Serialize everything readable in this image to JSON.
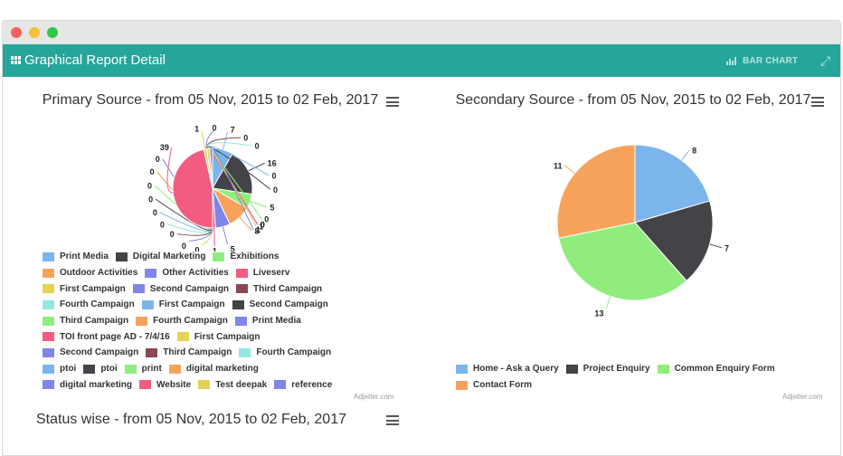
{
  "window": {
    "title": "Graphical Report Detail"
  },
  "header": {
    "bar_chart_label": "BAR CHART"
  },
  "primary_chart": {
    "title": "Primary Source - from 05 Nov, 2015 to 02 Feb, 2017",
    "credit": "Adjetter.com"
  },
  "secondary_chart": {
    "title": "Secondary Source - from 05 Nov, 2015 to 02 Feb, 2017",
    "credit": "Adjetter.com"
  },
  "status_chart": {
    "title": "Status wise - from 05 Nov, 2015 to 02 Feb, 2017"
  },
  "chart_data": [
    {
      "type": "pie",
      "title": "Primary Source - from 05 Nov, 2015 to 02 Feb, 2017",
      "legend_position": "bottom",
      "slices": [
        {
          "label": "Print Media",
          "value": 7,
          "color": "#7cb5ec"
        },
        {
          "label": "Digital Marketing",
          "value": 16,
          "color": "#434348"
        },
        {
          "label": "Exhibitions",
          "value": 5,
          "color": "#90ed7d"
        },
        {
          "label": "Outdoor Activities",
          "value": 8,
          "color": "#f7a35c"
        },
        {
          "label": "Other Activities",
          "value": 5,
          "color": "#8085e9"
        },
        {
          "label": "Liveserv",
          "value": 1,
          "color": "#f15c80"
        },
        {
          "label": "First Campaign",
          "value": 0,
          "color": "#e4d354"
        },
        {
          "label": "Second Campaign",
          "value": 0,
          "color": "#8085e8"
        },
        {
          "label": "Third Campaign",
          "value": 0,
          "color": "#8d4653"
        },
        {
          "label": "Fourth Campaign",
          "value": 0,
          "color": "#91e8e1"
        },
        {
          "label": "First Campaign",
          "value": 0,
          "color": "#7cb5ec"
        },
        {
          "label": "Second Campaign",
          "value": 0,
          "color": "#434348"
        },
        {
          "label": "Third Campaign",
          "value": 0,
          "color": "#90ed7d"
        },
        {
          "label": "Fourth Campaign",
          "value": 0,
          "color": "#f7a35c"
        },
        {
          "label": "Print Media",
          "value": 0,
          "color": "#8085e9"
        },
        {
          "label": "TOI front page AD - 7/4/16",
          "value": 39,
          "color": "#f15c80"
        },
        {
          "label": "First Campaign",
          "value": 1,
          "color": "#e4d354"
        },
        {
          "label": "Second Campaign",
          "value": 0,
          "color": "#8085e8"
        },
        {
          "label": "Third Campaign",
          "value": 0,
          "color": "#8d4653"
        },
        {
          "label": "Fourth Campaign",
          "value": 0,
          "color": "#91e8e1"
        },
        {
          "label": "ptoi",
          "value": 0,
          "color": "#7cb5ec"
        },
        {
          "label": "ptoi",
          "value": 0,
          "color": "#434348"
        },
        {
          "label": "print",
          "value": 0,
          "color": "#90ed7d"
        },
        {
          "label": "digital marketing",
          "value": 0,
          "color": "#f7a35c"
        },
        {
          "label": "digital marketing",
          "value": 0,
          "color": "#8085e9"
        },
        {
          "label": "Website",
          "value": 0,
          "color": "#f15c80"
        },
        {
          "label": "Test deepak",
          "value": 1,
          "color": "#e4d354"
        },
        {
          "label": "reference",
          "value": 1,
          "color": "#8085e8"
        }
      ]
    },
    {
      "type": "pie",
      "title": "Secondary Source - from 05 Nov, 2015 to 02 Feb, 2017",
      "legend_position": "bottom",
      "slices": [
        {
          "label": "Home - Ask a Query",
          "value": 8,
          "color": "#7cb5ec"
        },
        {
          "label": "Project Enquiry",
          "value": 7,
          "color": "#434348"
        },
        {
          "label": "Common Enquiry Form",
          "value": 13,
          "color": "#90ed7d"
        },
        {
          "label": "Contact Form",
          "value": 11,
          "color": "#f7a35c"
        }
      ]
    }
  ]
}
